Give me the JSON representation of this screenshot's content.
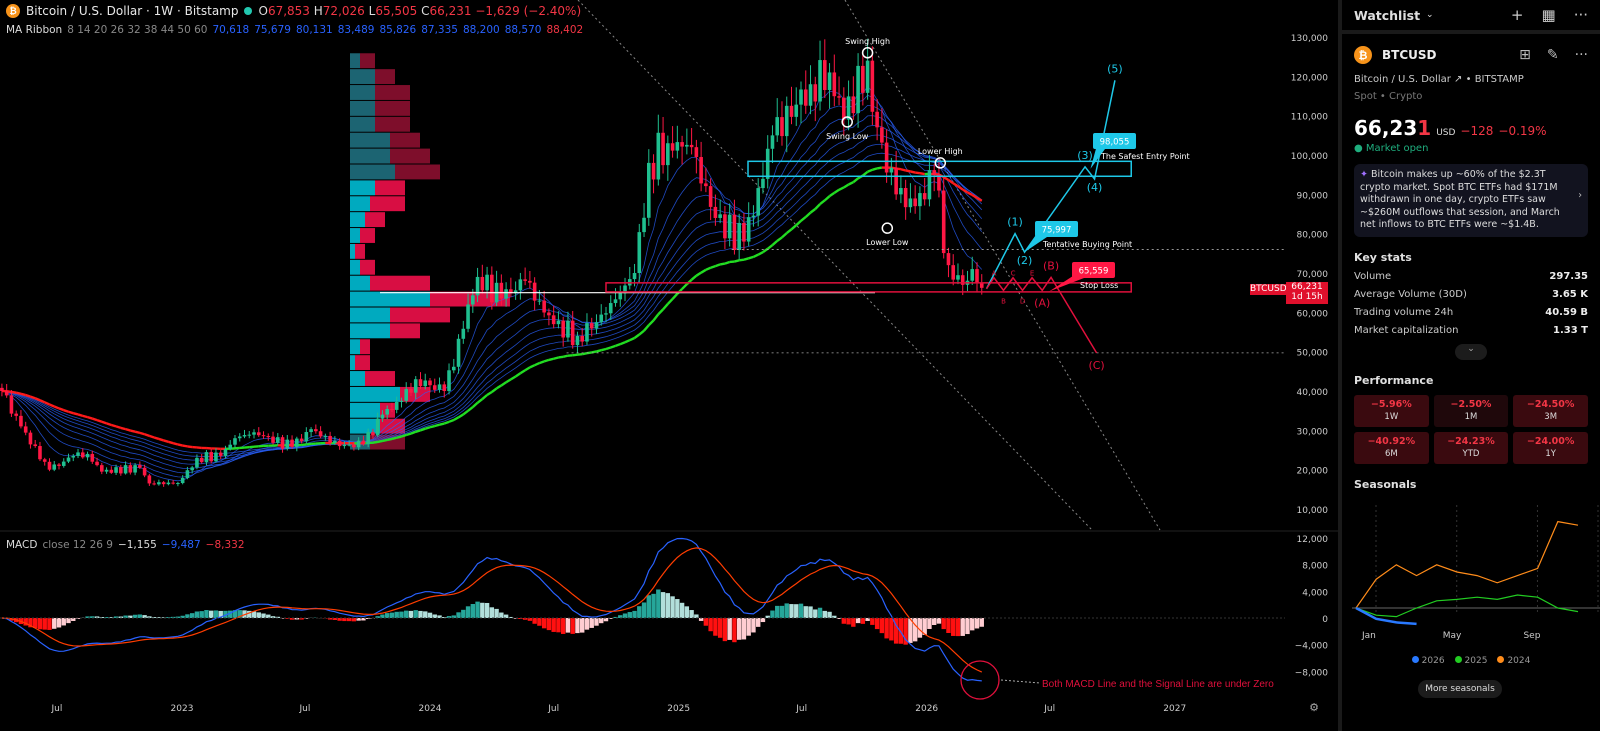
{
  "header": {
    "title": "Bitcoin / U.S. Dollar · 1W · Bitstamp",
    "open_label": "O",
    "open": "67,853",
    "high_label": "H",
    "high": "72,026",
    "low_label": "L",
    "low": "65,505",
    "close_label": "C",
    "close": "66,231",
    "change": "−1,629 (−2.40%)"
  },
  "ma_ribbon": {
    "label": "MA Ribbon",
    "params": "8 14 20 26 32 38 44 50 60",
    "values": [
      "70,618",
      "75,679",
      "80,131",
      "83,489",
      "85,826",
      "87,335",
      "88,200",
      "88,570"
    ],
    "last_value": "88,402"
  },
  "macd_header": {
    "label": "MACD",
    "params": "close 12 26 9",
    "hist": "−1,155",
    "macd": "−9,487",
    "signal": "−8,332"
  },
  "price_tag": {
    "symbol": "BTCUSD",
    "price": "66,231",
    "countdown": "1d 15h"
  },
  "colors": {
    "up": "#1fbf8f",
    "down": "#ff1744",
    "ribbon": "#2962ff",
    "ma_up": "#22dd22",
    "ma_down": "#ff1a1a",
    "wave": "#1ec8e8",
    "corr": "#e0103c"
  },
  "chart_data": {
    "type": "candlestick",
    "interval": "1W",
    "y_axis": {
      "ticks": [
        "130,000",
        "120,000",
        "110,000",
        "100,000",
        "90,000",
        "80,000",
        "70,000",
        "60,000",
        "50,000",
        "40,000",
        "30,000",
        "20,000",
        "10,000"
      ],
      "range": [
        10000,
        130000
      ]
    },
    "x_axis": {
      "ticks": [
        [
          "2022-07-01",
          "Jul"
        ],
        [
          "2023-01-01",
          "2023"
        ],
        [
          "2023-07-01",
          "Jul"
        ],
        [
          "2024-01-01",
          "2024"
        ],
        [
          "2024-07-01",
          "Jul"
        ],
        [
          "2025-01-01",
          "2025"
        ],
        [
          "2025-07-01",
          "Jul"
        ],
        [
          "2026-01-01",
          "2026"
        ],
        [
          "2026-07-01",
          "Jul"
        ],
        [
          "2027-01-01",
          "2027"
        ]
      ]
    },
    "price_path": [
      [
        "2022-04-11",
        40000
      ],
      [
        "2022-05-09",
        31000
      ],
      [
        "2022-06-13",
        22000
      ],
      [
        "2022-06-20",
        20000
      ],
      [
        "2022-07-25",
        23500
      ],
      [
        "2022-08-15",
        24000
      ],
      [
        "2022-09-05",
        19500
      ],
      [
        "2022-10-31",
        20500
      ],
      [
        "2022-11-14",
        16500
      ],
      [
        "2022-12-26",
        16600
      ],
      [
        "2023-01-23",
        23000
      ],
      [
        "2023-02-27",
        23500
      ],
      [
        "2023-03-20",
        28000
      ],
      [
        "2023-04-17",
        29500
      ],
      [
        "2023-06-12",
        25800
      ],
      [
        "2023-07-10",
        30300
      ],
      [
        "2023-08-21",
        26000
      ],
      [
        "2023-09-25",
        26500
      ],
      [
        "2023-10-23",
        34000
      ],
      [
        "2023-11-20",
        37500
      ],
      [
        "2023-12-11",
        43000
      ],
      [
        "2024-01-22",
        40000
      ],
      [
        "2024-02-26",
        62000
      ],
      [
        "2024-03-11",
        69000
      ],
      [
        "2024-04-15",
        63500
      ],
      [
        "2024-05-20",
        68000
      ],
      [
        "2024-07-01",
        57000
      ],
      [
        "2024-08-05",
        54000
      ],
      [
        "2024-09-02",
        57500
      ],
      [
        "2024-10-28",
        70000
      ],
      [
        "2024-11-18",
        98000
      ],
      [
        "2024-12-16",
        103000
      ],
      [
        "2025-01-20",
        102000
      ],
      [
        "2025-02-24",
        84000
      ],
      [
        "2025-04-07",
        78000
      ],
      [
        "2025-05-19",
        105000
      ],
      [
        "2025-07-14",
        118000
      ],
      [
        "2025-08-11",
        121000
      ],
      [
        "2025-09-01",
        109000
      ],
      [
        "2025-10-06",
        124000
      ],
      [
        "2025-10-13",
        111000
      ],
      [
        "2025-11-17",
        90000
      ],
      [
        "2025-12-15",
        87000
      ],
      [
        "2026-01-12",
        95000
      ],
      [
        "2026-02-02",
        72000
      ],
      [
        "2026-02-23",
        67000
      ],
      [
        "2026-03-09",
        71000
      ],
      [
        "2026-03-23",
        66231
      ]
    ],
    "ma_ribbon_periods": [
      8,
      14,
      20,
      26,
      32,
      38,
      44,
      50,
      60
    ],
    "macd": {
      "fast": 12,
      "slow": 26,
      "signal": 9,
      "y_ticks": [
        "12,000",
        "8,000",
        "4,000",
        "0",
        "−4,000",
        "−8,000"
      ],
      "range": [
        -12000,
        12000
      ]
    },
    "volume_profile": {
      "rows": [
        [
          10,
          15,
          false
        ],
        [
          25,
          20,
          false
        ],
        [
          25,
          35,
          false
        ],
        [
          25,
          35,
          false
        ],
        [
          25,
          35,
          false
        ],
        [
          40,
          30,
          false
        ],
        [
          40,
          40,
          false
        ],
        [
          45,
          45,
          false
        ],
        [
          25,
          30,
          true
        ],
        [
          20,
          35,
          true
        ],
        [
          15,
          20,
          true
        ],
        [
          10,
          15,
          true
        ],
        [
          5,
          10,
          true
        ],
        [
          10,
          15,
          true
        ],
        [
          20,
          60,
          true
        ],
        [
          80,
          80,
          true
        ],
        [
          40,
          60,
          true
        ],
        [
          40,
          30,
          true
        ],
        [
          10,
          10,
          true
        ],
        [
          5,
          15,
          true
        ],
        [
          15,
          30,
          true
        ],
        [
          50,
          30,
          true
        ],
        [
          30,
          15,
          true
        ],
        [
          30,
          25,
          true
        ],
        [
          20,
          35,
          false
        ]
      ],
      "price_range": [
        25000,
        126000
      ]
    },
    "pivots": [
      {
        "label": "Swing High",
        "date": "2025-10-06",
        "price": 126000,
        "pos": "above"
      },
      {
        "label": "Swing Low",
        "date": "2025-09-06",
        "price": 108400,
        "pos": "below"
      },
      {
        "label": "Lower High",
        "date": "2026-01-21",
        "price": 98000,
        "pos": "above"
      },
      {
        "label": "Lower Low",
        "date": "2025-11-04",
        "price": 81400,
        "pos": "below"
      }
    ],
    "zones": [
      {
        "name": "resistance",
        "from": "2025-04-13",
        "to": "2026-10-29",
        "top": 98400,
        "bottom": 94600,
        "color": "#1ec8e8"
      },
      {
        "name": "support",
        "from": "2024-09-16",
        "to": "2026-10-29",
        "top": 67500,
        "bottom": 65200,
        "color": "#e0103c"
      }
    ],
    "levels": [
      {
        "price": 76000,
        "from": "2025-03-20"
      },
      {
        "price": 49700,
        "from": "2024-07-20"
      }
    ],
    "impulse_wave": [
      [
        "2026-03-30",
        66000,
        ""
      ],
      [
        "2026-05-11",
        80000,
        "(1)"
      ],
      [
        "2026-05-25",
        75300,
        "(2)"
      ],
      [
        "2026-08-22",
        97000,
        "(3)"
      ],
      [
        "2026-09-05",
        93900,
        "(4)"
      ],
      [
        "2026-10-05",
        119000,
        "(5)"
      ]
    ],
    "correction_wave": [
      [
        "2026-03-30",
        66000,
        ""
      ],
      [
        "2026-04-10",
        68800,
        "A"
      ],
      [
        "2026-04-24",
        65600,
        "B"
      ],
      [
        "2026-05-08",
        68800,
        "C"
      ],
      [
        "2026-05-22",
        65600,
        "D"
      ],
      [
        "2026-06-05",
        68800,
        "E"
      ],
      [
        "2026-06-20",
        65600,
        "(A)"
      ],
      [
        "2026-07-03",
        68900,
        "(B)"
      ],
      [
        "2026-09-08",
        49700,
        "(C)"
      ]
    ],
    "callouts": [
      {
        "value": "75,997",
        "text": "Tentative Buying Point",
        "color": "#1ec8e8"
      },
      {
        "value": "98,055",
        "text": "The Safest Entry Point",
        "color": "#1ec8e8"
      },
      {
        "value": "65,559",
        "text": "Stop Loss",
        "color": "#ff1744"
      }
    ],
    "macd_note": "Both MACD Line and the Signal Line are under Zero"
  },
  "panel": {
    "watchlist": "Watchlist",
    "symbol": "BTCUSD",
    "name": "Bitcoin / U.S. Dollar",
    "exchange": "BITSTAMP",
    "type": "Spot • Crypto",
    "price_main": "66,23",
    "price_last": "1",
    "currency": "USD",
    "change": "−128",
    "change_pct": "−0.19%",
    "status": "Market open",
    "news": "Bitcoin makes up ~60% of the $2.3T crypto market. Spot BTC ETFs had $171M withdrawn in one day, crypto ETFs saw ~$260M outflows that session, and March net inflows to BTC ETFs were ~$1.4B.",
    "key_stats_title": "Key stats",
    "key_stats": [
      {
        "k": "Volume",
        "v": "297.35"
      },
      {
        "k": "Average Volume (30D)",
        "v": "3.65 K"
      },
      {
        "k": "Trading volume 24h",
        "v": "40.59 B"
      },
      {
        "k": "Market capitalization",
        "v": "1.33 T"
      }
    ],
    "performance_title": "Performance",
    "performance": [
      {
        "v": "−5.96%",
        "k": "1W"
      },
      {
        "v": "−2.50%",
        "k": "1M"
      },
      {
        "v": "−24.50%",
        "k": "3M"
      },
      {
        "v": "−40.92%",
        "k": "6M"
      },
      {
        "v": "−24.23%",
        "k": "YTD"
      },
      {
        "v": "−24.00%",
        "k": "1Y"
      }
    ],
    "seasonals_title": "Seasonals",
    "seasonals": {
      "x_ticks": [
        "Jan",
        "May",
        "Sep"
      ],
      "series": [
        {
          "name": "2026",
          "color": "#2979ff",
          "values": [
            0,
            -15,
            -20,
            -22
          ]
        },
        {
          "name": "2025",
          "color": "#22cc22",
          "values": [
            0,
            -10,
            -12,
            0,
            10,
            12,
            15,
            12,
            18,
            15,
            0,
            -5
          ]
        },
        {
          "name": "2024",
          "color": "#ff8c1a",
          "values": [
            0,
            40,
            60,
            45,
            60,
            50,
            45,
            35,
            45,
            55,
            120,
            115
          ]
        }
      ]
    },
    "more_seasonals": "More seasonals"
  }
}
